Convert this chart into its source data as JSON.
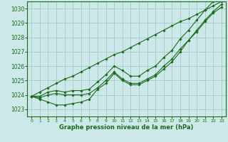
{
  "background_color": "#cce8e8",
  "grid_color": "#aacccc",
  "line_color": "#1a6b1a",
  "marker_color": "#1a6b1a",
  "xlabel": "Graphe pression niveau de la mer (hPa)",
  "xlabel_color": "#1a6b1a",
  "ylim": [
    1022.5,
    1030.5
  ],
  "xlim": [
    -0.5,
    23.5
  ],
  "yticks": [
    1023,
    1024,
    1025,
    1026,
    1027,
    1028,
    1029,
    1030
  ],
  "xticks": [
    0,
    1,
    2,
    3,
    4,
    5,
    6,
    7,
    8,
    9,
    10,
    11,
    12,
    13,
    14,
    15,
    16,
    17,
    18,
    19,
    20,
    21,
    22,
    23
  ],
  "series": [
    [
      1023.9,
      1023.8,
      1024.0,
      1024.1,
      1024.0,
      1024.0,
      1024.0,
      1024.1,
      1024.5,
      1025.0,
      1025.6,
      1025.1,
      1024.8,
      1024.8,
      1025.1,
      1025.4,
      1026.0,
      1026.5,
      1027.2,
      1027.8,
      1028.5,
      1029.2,
      1029.8,
      1030.3
    ],
    [
      1023.9,
      1023.7,
      1023.5,
      1023.3,
      1023.3,
      1023.4,
      1023.5,
      1023.7,
      1024.4,
      1024.8,
      1025.5,
      1025.0,
      1024.7,
      1024.7,
      1025.0,
      1025.3,
      1025.8,
      1026.3,
      1027.0,
      1027.8,
      1028.4,
      1029.1,
      1029.7,
      1030.1
    ],
    [
      1023.9,
      1023.9,
      1024.2,
      1024.3,
      1024.2,
      1024.3,
      1024.3,
      1024.4,
      1024.9,
      1025.4,
      1026.0,
      1025.7,
      1025.3,
      1025.3,
      1025.7,
      1026.0,
      1026.6,
      1027.1,
      1027.9,
      1028.5,
      1029.2,
      1029.9,
      1030.5,
      1031.0
    ]
  ],
  "series_straight": [
    1023.9,
    1024.2,
    1024.5,
    1024.8,
    1025.1,
    1025.3,
    1025.6,
    1025.9,
    1026.2,
    1026.5,
    1026.8,
    1027.0,
    1027.3,
    1027.6,
    1027.9,
    1028.2,
    1028.5,
    1028.8,
    1029.1,
    1029.3,
    1029.6,
    1029.9,
    1030.2,
    1030.5
  ]
}
